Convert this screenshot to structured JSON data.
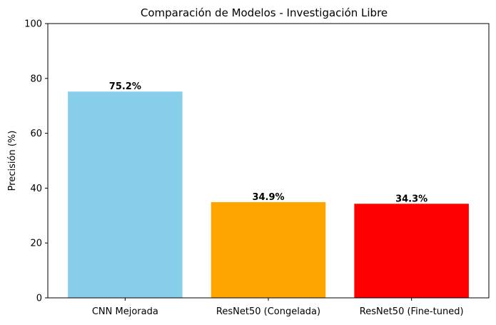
{
  "chart_data": {
    "type": "bar",
    "title": "Comparación de Modelos - Investigación Libre",
    "xlabel": "",
    "ylabel": "Precisión (%)",
    "ylim": [
      0,
      100
    ],
    "yticks": [
      0,
      20,
      40,
      60,
      80,
      100
    ],
    "categories": [
      "CNN Mejorada",
      "ResNet50 (Congelada)",
      "ResNet50 (Fine-tuned)"
    ],
    "values": [
      75.2,
      34.9,
      34.3
    ],
    "value_labels": [
      "75.2%",
      "34.9%",
      "34.3%"
    ],
    "colors": [
      "#87CEEB",
      "#FFA500",
      "#FF0000"
    ],
    "grid": false,
    "legend": "none"
  }
}
